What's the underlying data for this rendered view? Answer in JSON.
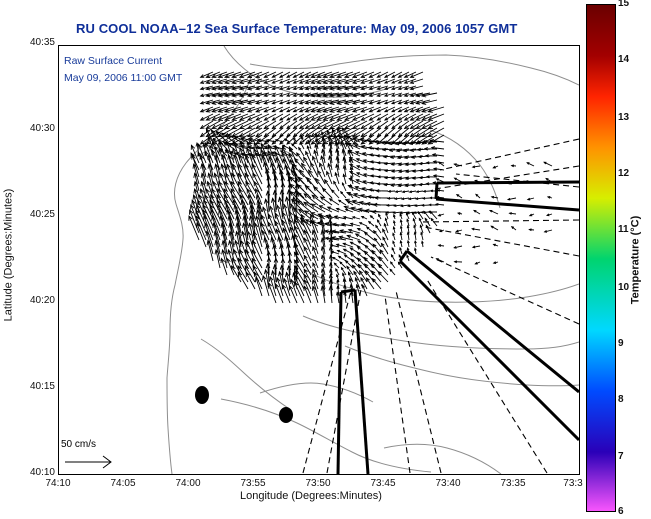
{
  "title": "RU COOL  NOAA–12  Sea Surface Temperature:  May 09, 2006 1057 GMT",
  "legend": {
    "current_title": "Raw Surface Current",
    "current_time": "May 09, 2006 11:00 GMT",
    "scale_label": "50 cm/s"
  },
  "axes": {
    "x_label": "Longitude (Degrees:Minutes)",
    "y_label": "Latitude (Degrees:Minutes)",
    "x_ticks": [
      "74:10",
      "74:05",
      "74:00",
      "73:55",
      "73:50",
      "73:45",
      "73:40",
      "73:35",
      "73:3"
    ],
    "y_ticks": [
      "40:35",
      "40:30",
      "40:25",
      "40:20",
      "40:15",
      "40:10"
    ]
  },
  "colorbar": {
    "label": "Temperature (°C)",
    "ticks": [
      "15",
      "14",
      "13",
      "12",
      "11",
      "10",
      "9",
      "8",
      "7",
      "6"
    ]
  },
  "colors": {
    "title": "#0f2f99",
    "inset_text": "#183b9a",
    "contours": "#8e8e8e",
    "arrows": "#000000",
    "axis": "#000000"
  }
}
